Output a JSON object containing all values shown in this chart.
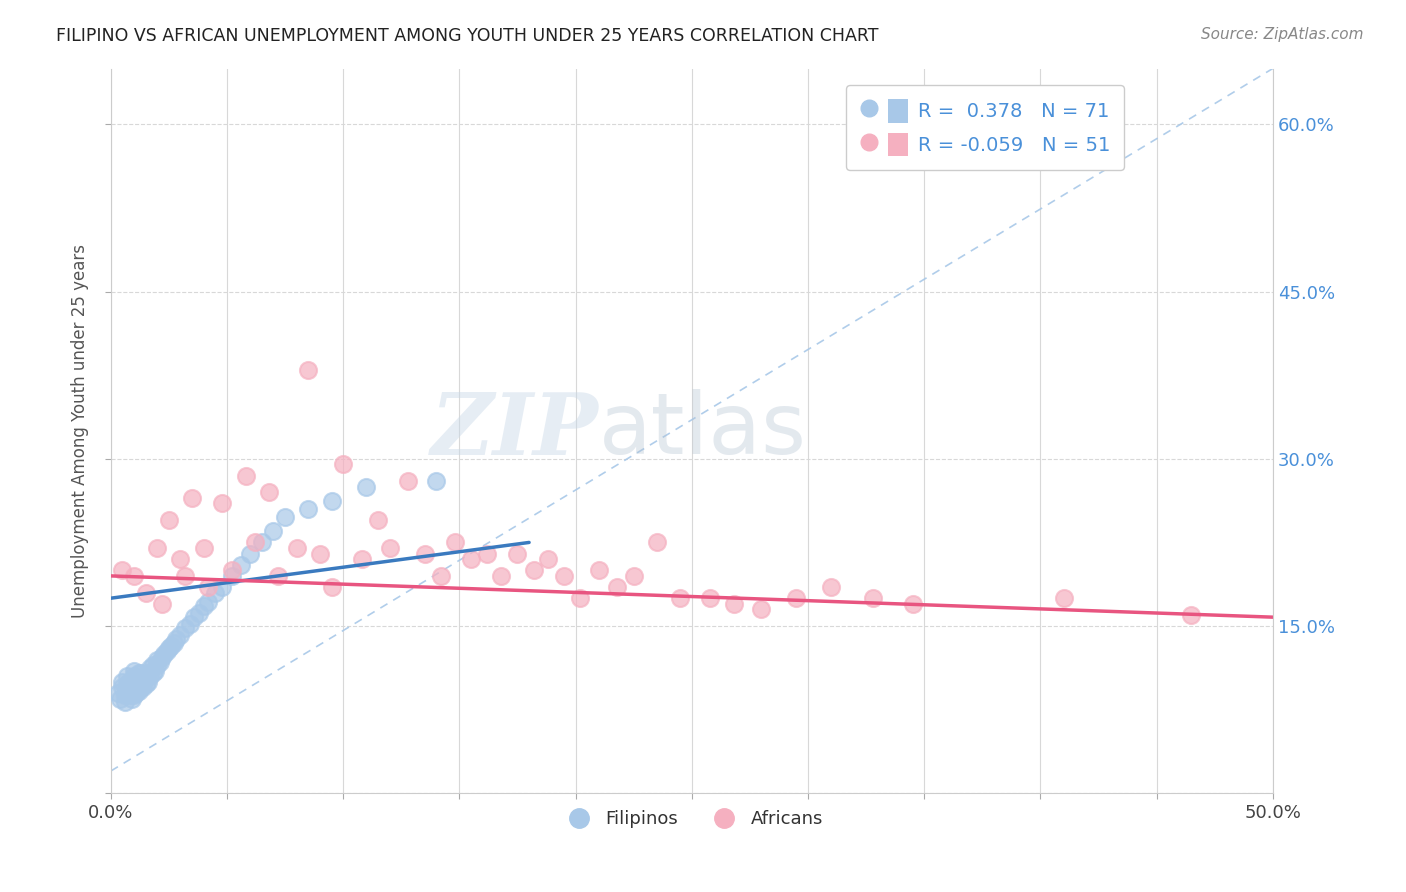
{
  "title": "FILIPINO VS AFRICAN UNEMPLOYMENT AMONG YOUTH UNDER 25 YEARS CORRELATION CHART",
  "source": "Source: ZipAtlas.com",
  "ylabel": "Unemployment Among Youth under 25 years",
  "x_min": 0.0,
  "x_max": 0.5,
  "y_min": 0.0,
  "y_max": 0.65,
  "y_tick_labels_right": [
    "15.0%",
    "30.0%",
    "45.0%",
    "60.0%"
  ],
  "y_tick_vals_right": [
    0.15,
    0.3,
    0.45,
    0.6
  ],
  "filipino_R": "0.378",
  "filipino_N": "71",
  "african_R": "-0.059",
  "african_N": "51",
  "filipino_color": "#a8c8e8",
  "african_color": "#f5b0c0",
  "filipino_line_color": "#3a7abf",
  "african_line_color": "#e85580",
  "dashed_line_color": "#a8c8e8",
  "background_color": "#ffffff",
  "grid_color": "#d8d8d8",
  "watermark_zip": "ZIP",
  "watermark_atlas": "atlas",
  "filipino_scatter_x": [
    0.003,
    0.004,
    0.005,
    0.005,
    0.006,
    0.006,
    0.007,
    0.007,
    0.007,
    0.008,
    0.008,
    0.008,
    0.009,
    0.009,
    0.009,
    0.009,
    0.01,
    0.01,
    0.01,
    0.01,
    0.01,
    0.01,
    0.011,
    0.011,
    0.011,
    0.012,
    0.012,
    0.012,
    0.013,
    0.013,
    0.013,
    0.014,
    0.014,
    0.015,
    0.015,
    0.016,
    0.016,
    0.017,
    0.017,
    0.018,
    0.018,
    0.019,
    0.02,
    0.02,
    0.021,
    0.022,
    0.023,
    0.024,
    0.025,
    0.026,
    0.027,
    0.028,
    0.03,
    0.032,
    0.034,
    0.036,
    0.038,
    0.04,
    0.042,
    0.045,
    0.048,
    0.052,
    0.056,
    0.06,
    0.065,
    0.07,
    0.075,
    0.085,
    0.095,
    0.11,
    0.14
  ],
  "filipino_scatter_y": [
    0.09,
    0.085,
    0.095,
    0.1,
    0.082,
    0.088,
    0.092,
    0.098,
    0.105,
    0.088,
    0.093,
    0.1,
    0.085,
    0.09,
    0.095,
    0.102,
    0.088,
    0.092,
    0.096,
    0.1,
    0.105,
    0.11,
    0.09,
    0.095,
    0.1,
    0.092,
    0.098,
    0.108,
    0.095,
    0.1,
    0.108,
    0.095,
    0.102,
    0.098,
    0.105,
    0.1,
    0.108,
    0.105,
    0.112,
    0.108,
    0.115,
    0.11,
    0.115,
    0.12,
    0.118,
    0.122,
    0.125,
    0.128,
    0.13,
    0.132,
    0.135,
    0.138,
    0.142,
    0.148,
    0.152,
    0.158,
    0.162,
    0.168,
    0.172,
    0.18,
    0.185,
    0.195,
    0.205,
    0.215,
    0.225,
    0.235,
    0.248,
    0.255,
    0.262,
    0.275,
    0.28
  ],
  "african_scatter_x": [
    0.005,
    0.01,
    0.015,
    0.02,
    0.022,
    0.025,
    0.03,
    0.032,
    0.035,
    0.04,
    0.042,
    0.048,
    0.052,
    0.058,
    0.062,
    0.068,
    0.072,
    0.08,
    0.085,
    0.09,
    0.095,
    0.1,
    0.108,
    0.115,
    0.12,
    0.128,
    0.135,
    0.142,
    0.148,
    0.155,
    0.162,
    0.168,
    0.175,
    0.182,
    0.188,
    0.195,
    0.202,
    0.21,
    0.218,
    0.225,
    0.235,
    0.245,
    0.258,
    0.268,
    0.28,
    0.295,
    0.31,
    0.328,
    0.345,
    0.41,
    0.465
  ],
  "african_scatter_y": [
    0.2,
    0.195,
    0.18,
    0.22,
    0.17,
    0.245,
    0.21,
    0.195,
    0.265,
    0.22,
    0.185,
    0.26,
    0.2,
    0.285,
    0.225,
    0.27,
    0.195,
    0.22,
    0.38,
    0.215,
    0.185,
    0.295,
    0.21,
    0.245,
    0.22,
    0.28,
    0.215,
    0.195,
    0.225,
    0.21,
    0.215,
    0.195,
    0.215,
    0.2,
    0.21,
    0.195,
    0.175,
    0.2,
    0.185,
    0.195,
    0.225,
    0.175,
    0.175,
    0.17,
    0.165,
    0.175,
    0.185,
    0.175,
    0.17,
    0.175,
    0.16
  ],
  "fil_trend_x": [
    0.0,
    0.18
  ],
  "fil_trend_y": [
    0.175,
    0.225
  ],
  "afr_trend_x": [
    0.0,
    0.5
  ],
  "afr_trend_y": [
    0.195,
    0.158
  ]
}
